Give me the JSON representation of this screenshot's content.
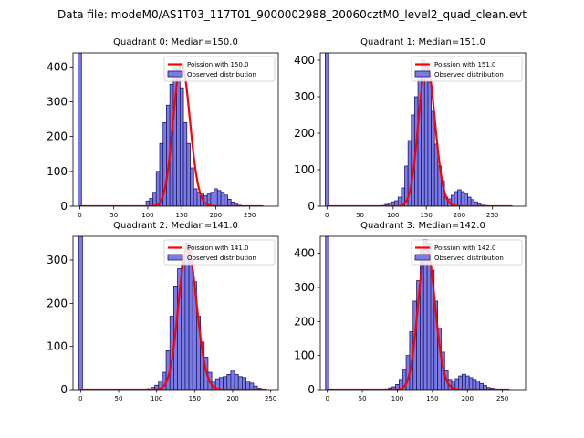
{
  "title": "Data file: modeM0/AS1T03_117T01_9000002988_20060cztM0_level2_quad_clean.evt",
  "colors": {
    "bar_fill": "#7b7be6",
    "bar_edge": "#1a1a66",
    "poisson": "#ff0000"
  },
  "chart_data": [
    {
      "type": "bar",
      "title": "Quadrant 0: Median=150.0",
      "xlim": [
        -10,
        292
      ],
      "ylim": [
        0,
        440
      ],
      "xticks": [
        0,
        50,
        100,
        150,
        200,
        250
      ],
      "yticks": [
        0,
        100,
        200,
        300,
        400
      ],
      "bin_width": 5,
      "zero_bin": {
        "x": 0,
        "value": 440
      },
      "bins": {
        "x": [
          100,
          105,
          110,
          115,
          120,
          125,
          130,
          135,
          140,
          145,
          150,
          155,
          160,
          165,
          170,
          175,
          180,
          185,
          190,
          195,
          200,
          205,
          210,
          215,
          220,
          225,
          230,
          235,
          240
        ],
        "values": [
          15,
          22,
          40,
          100,
          180,
          240,
          290,
          350,
          400,
          395,
          340,
          240,
          180,
          110,
          50,
          40,
          38,
          30,
          35,
          40,
          50,
          45,
          40,
          32,
          20,
          12,
          6,
          3,
          1
        ]
      },
      "poisson": {
        "label": "Poission with 150.0",
        "mu": 150,
        "amplitude": 410,
        "x_range": [
          0,
          270
        ]
      },
      "legend": {
        "line": "Poission with 150.0",
        "bars": "Observed distribution",
        "position": "top-right"
      }
    },
    {
      "type": "bar",
      "title": "Quadrant 1: Median=151.0",
      "xlim": [
        -10,
        300
      ],
      "ylim": [
        0,
        420
      ],
      "xticks": [
        0,
        50,
        100,
        150,
        200,
        250
      ],
      "yticks": [
        0,
        100,
        200,
        300,
        400
      ],
      "bin_width": 5,
      "zero_bin": {
        "x": 0,
        "value": 420
      },
      "bins": {
        "x": [
          85,
          90,
          95,
          100,
          105,
          110,
          115,
          120,
          125,
          130,
          135,
          140,
          145,
          150,
          155,
          160,
          165,
          170,
          175,
          180,
          185,
          190,
          195,
          200,
          205,
          210,
          215,
          220,
          225,
          230,
          235,
          240,
          245
        ],
        "values": [
          2,
          5,
          8,
          12,
          15,
          25,
          50,
          110,
          180,
          250,
          300,
          360,
          400,
          390,
          340,
          260,
          170,
          110,
          70,
          25,
          20,
          30,
          40,
          45,
          40,
          35,
          25,
          18,
          12,
          6,
          3,
          2,
          1
        ]
      },
      "poisson": {
        "label": "Poission with 151.0",
        "mu": 151,
        "amplitude": 390,
        "x_range": [
          0,
          280
        ]
      },
      "legend": {
        "line": "Poission with 151.0",
        "bars": "Observed distribution",
        "position": "top-right"
      }
    },
    {
      "type": "bar",
      "title": "Quadrant 2: Median=141.0",
      "xlim": [
        -10,
        260
      ],
      "ylim": [
        0,
        355
      ],
      "xticks": [
        0,
        50,
        100,
        150,
        200,
        250
      ],
      "yticks": [
        0,
        100,
        200,
        300
      ],
      "bin_width": 5,
      "zero_bin": {
        "x": 0,
        "value": 355
      },
      "bins": {
        "x": [
          90,
          95,
          100,
          105,
          110,
          115,
          120,
          125,
          130,
          135,
          140,
          145,
          150,
          155,
          160,
          165,
          170,
          175,
          180,
          185,
          190,
          195,
          200,
          205,
          210,
          215,
          220,
          225,
          230,
          235
        ],
        "values": [
          2,
          5,
          10,
          20,
          40,
          90,
          170,
          240,
          280,
          300,
          340,
          320,
          250,
          170,
          110,
          75,
          40,
          20,
          25,
          28,
          30,
          35,
          45,
          35,
          30,
          28,
          20,
          15,
          8,
          3
        ]
      },
      "poisson": {
        "label": "Poission with 141.0",
        "mu": 141,
        "amplitude": 330,
        "x_range": [
          0,
          245
        ]
      },
      "legend": {
        "line": "Poission with 141.0",
        "bars": "Observed distribution",
        "position": "top-right"
      }
    },
    {
      "type": "bar",
      "title": "Quadrant 3: Median=142.0",
      "xlim": [
        -10,
        283
      ],
      "ylim": [
        0,
        450
      ],
      "xticks": [
        0,
        50,
        100,
        150,
        200,
        250
      ],
      "yticks": [
        0,
        100,
        200,
        300,
        400
      ],
      "bin_width": 5,
      "zero_bin": {
        "x": 0,
        "value": 450
      },
      "bins": {
        "x": [
          85,
          90,
          95,
          100,
          105,
          110,
          115,
          120,
          125,
          130,
          135,
          140,
          145,
          150,
          155,
          160,
          165,
          170,
          175,
          180,
          185,
          190,
          195,
          200,
          205,
          210,
          215,
          220,
          225,
          230,
          235,
          240,
          245
        ],
        "values": [
          2,
          5,
          8,
          15,
          30,
          60,
          100,
          170,
          260,
          320,
          410,
          440,
          430,
          350,
          260,
          180,
          110,
          55,
          30,
          25,
          32,
          40,
          45,
          40,
          35,
          30,
          25,
          18,
          12,
          6,
          4,
          2,
          1
        ]
      },
      "poisson": {
        "label": "Poission with 142.0",
        "mu": 142,
        "amplitude": 420,
        "x_range": [
          0,
          260
        ]
      },
      "legend": {
        "line": "Poission with 142.0",
        "bars": "Observed distribution",
        "position": "top-right"
      }
    }
  ]
}
